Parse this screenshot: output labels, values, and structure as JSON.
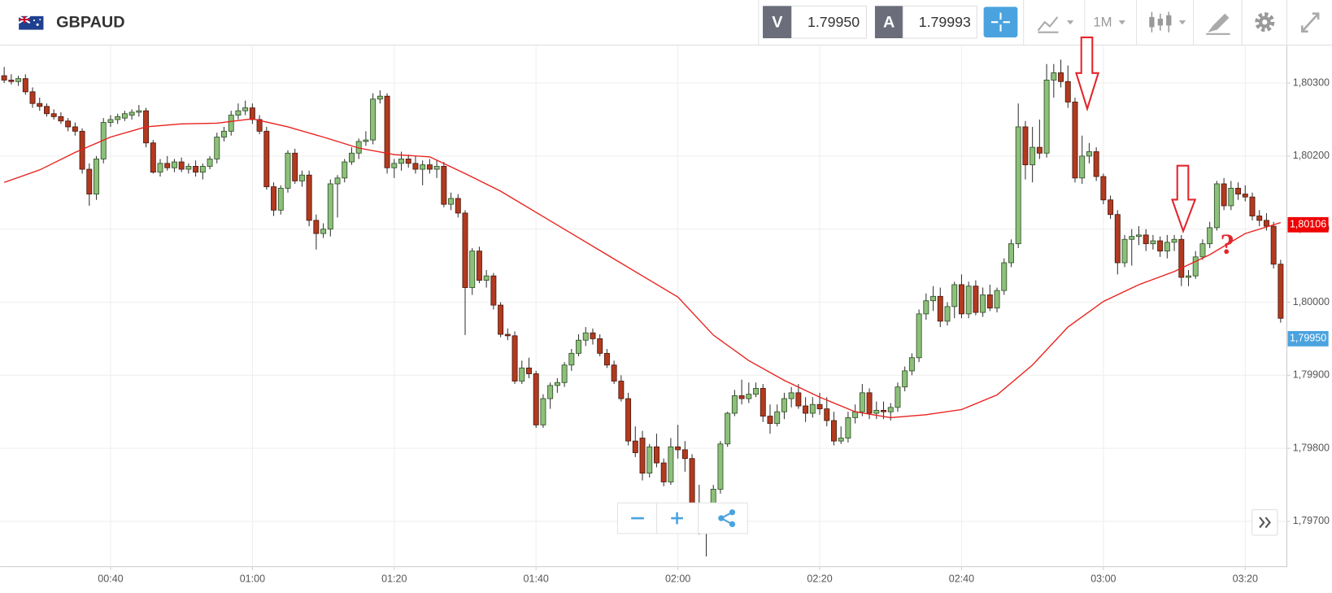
{
  "toolbar": {
    "symbol": "GBPAUD",
    "sell_label": "V",
    "sell_price": "1.79950",
    "buy_label": "A",
    "buy_price": "1.79993",
    "timeframe": "1M"
  },
  "chart_data": {
    "type": "candlestick",
    "x": [
      25,
      26,
      27,
      28,
      29,
      30,
      31,
      32,
      33,
      34,
      35,
      36,
      37,
      38,
      39,
      40,
      41,
      42,
      43,
      44,
      45,
      46,
      47,
      48,
      49,
      50,
      51,
      52,
      53,
      54,
      55,
      56,
      57,
      58,
      59,
      60,
      61,
      62,
      63,
      64,
      65,
      66,
      67,
      68,
      69,
      70,
      71,
      72,
      73,
      74,
      75,
      76,
      77,
      78,
      79,
      80,
      81,
      82,
      83,
      84,
      85,
      86,
      87,
      88,
      89,
      90,
      91,
      92,
      93,
      94,
      95,
      96,
      97,
      98,
      99,
      100,
      101,
      102,
      103,
      104,
      105,
      106,
      107,
      108,
      109,
      110,
      111,
      112,
      113,
      114,
      115,
      116,
      117,
      118,
      119,
      120,
      121,
      122,
      123,
      124,
      125,
      126,
      127,
      128,
      129,
      130,
      131,
      132,
      133,
      134,
      135,
      136,
      137,
      138,
      139,
      140,
      141,
      142,
      143,
      144,
      145,
      146,
      147,
      148,
      149,
      150,
      151,
      152,
      153,
      154,
      155,
      156,
      157,
      158,
      159,
      160,
      161,
      162,
      163,
      164,
      165,
      166,
      167,
      168,
      169,
      170,
      171,
      172,
      173,
      174,
      175,
      176,
      177,
      178,
      179,
      180,
      181,
      182,
      183,
      184,
      185,
      186,
      187,
      188,
      189,
      190,
      191,
      192,
      193,
      194,
      195,
      196,
      197,
      198,
      199,
      200,
      201,
      202,
      203,
      204,
      205
    ],
    "open": [
      1.8031,
      1.80304,
      1.80302,
      1.80306,
      1.80288,
      1.80272,
      1.80268,
      1.80258,
      1.80254,
      1.80248,
      1.8024,
      1.80234,
      1.80182,
      1.80148,
      1.80196,
      1.80246,
      1.8025,
      1.80252,
      1.80256,
      1.8026,
      1.80262,
      1.80218,
      1.80178,
      1.8019,
      1.80184,
      1.80192,
      1.80182,
      1.80186,
      1.80178,
      1.80186,
      1.80196,
      1.80226,
      1.80234,
      1.80256,
      1.80262,
      1.80266,
      1.8025,
      1.80234,
      1.80158,
      1.80126,
      1.80156,
      1.80204,
      1.80166,
      1.80174,
      1.80112,
      1.80094,
      1.801,
      1.80162,
      1.8017,
      1.80192,
      1.80204,
      1.8022,
      1.80222,
      1.80278,
      1.80282,
      1.80184,
      1.8019,
      1.80196,
      1.8019,
      1.80182,
      1.80188,
      1.80182,
      1.80186,
      1.80134,
      1.80142,
      1.80122,
      1.8002,
      1.8007,
      1.8003,
      1.80036,
      1.79996,
      1.79956,
      1.79954,
      1.79892,
      1.7991,
      1.79902,
      1.79832,
      1.79868,
      1.79886,
      1.7989,
      1.79914,
      1.7993,
      1.79948,
      1.79958,
      1.7995,
      1.7993,
      1.79914,
      1.79892,
      1.79868,
      1.7981,
      1.79814,
      1.79766,
      1.79802,
      1.7978,
      1.79754,
      1.79802,
      1.79798,
      1.79786,
      1.79722,
      1.797,
      1.79708,
      1.79744,
      1.79806,
      1.79848,
      1.79872,
      1.79868,
      1.79874,
      1.79882,
      1.79844,
      1.79834,
      1.7985,
      1.79868,
      1.79876,
      1.79858,
      1.79848,
      1.7986,
      1.79854,
      1.79838,
      1.7981,
      1.79814,
      1.79842,
      1.7985,
      1.79876,
      1.79848,
      1.79852,
      1.7985,
      1.79856,
      1.79884,
      1.79906,
      1.79924,
      1.79984,
      1.80002,
      1.80008,
      1.79974,
      1.79994,
      1.80024,
      1.79984,
      1.80022,
      1.79986,
      1.8001,
      1.79992,
      1.80016,
      1.80054,
      1.8008,
      1.8024,
      1.80188,
      1.80212,
      1.80204,
      1.80304,
      1.80314,
      1.80302,
      1.80274,
      1.8017,
      1.802,
      1.80206,
      1.80172,
      1.8014,
      1.8012,
      1.80054,
      1.80086,
      1.8009,
      1.80092,
      1.8008,
      1.80084,
      1.8007,
      1.80082,
      1.80086,
      1.80034,
      1.80036,
      1.80062,
      1.8008,
      1.80102,
      1.80162,
      1.80132,
      1.80156,
      1.80148,
      1.80144,
      1.80118,
      1.80112,
      1.80104,
      1.80052
    ],
    "high": [
      1.80322,
      1.80312,
      1.8031,
      1.80312,
      1.80294,
      1.8028,
      1.80272,
      1.80264,
      1.8026,
      1.80252,
      1.80246,
      1.80238,
      1.8019,
      1.802,
      1.80252,
      1.80256,
      1.80258,
      1.80262,
      1.80264,
      1.8027,
      1.80266,
      1.80222,
      1.80196,
      1.802,
      1.80196,
      1.80198,
      1.8019,
      1.80194,
      1.8019,
      1.802,
      1.80232,
      1.8024,
      1.80262,
      1.80272,
      1.80276,
      1.80272,
      1.80256,
      1.8024,
      1.80164,
      1.8016,
      1.80208,
      1.8021,
      1.8018,
      1.8018,
      1.8012,
      1.80108,
      1.80168,
      1.80174,
      1.80196,
      1.80212,
      1.80224,
      1.80234,
      1.80286,
      1.8029,
      1.80286,
      1.80196,
      1.80206,
      1.80202,
      1.802,
      1.80194,
      1.80196,
      1.80194,
      1.80192,
      1.8015,
      1.80148,
      1.80126,
      1.80074,
      1.80076,
      1.80044,
      1.8004,
      1.8,
      1.79964,
      1.7996,
      1.7992,
      1.79924,
      1.79906,
      1.79874,
      1.7989,
      1.79896,
      1.79918,
      1.79936,
      1.79956,
      1.79966,
      1.79964,
      1.79956,
      1.79936,
      1.7992,
      1.799,
      1.79876,
      1.7983,
      1.79824,
      1.79806,
      1.7982,
      1.79786,
      1.79814,
      1.79832,
      1.7981,
      1.79792,
      1.7975,
      1.7972,
      1.7975,
      1.7981,
      1.7985,
      1.7988,
      1.79894,
      1.7989,
      1.7989,
      1.79888,
      1.7986,
      1.7986,
      1.79876,
      1.79884,
      1.79888,
      1.7987,
      1.7987,
      1.79876,
      1.7987,
      1.7985,
      1.7983,
      1.7985,
      1.7986,
      1.79888,
      1.79882,
      1.79864,
      1.79864,
      1.79862,
      1.7989,
      1.79912,
      1.7993,
      1.7999,
      1.80012,
      1.80022,
      1.8002,
      1.8,
      1.80028,
      1.80038,
      1.80028,
      1.8003,
      1.8002,
      1.80024,
      1.8002,
      1.8006,
      1.80086,
      1.80272,
      1.80248,
      1.8024,
      1.8025,
      1.80326,
      1.80326,
      1.80332,
      1.80324,
      1.8028,
      1.80228,
      1.80218,
      1.80212,
      1.80176,
      1.80146,
      1.80126,
      1.80092,
      1.801,
      1.80104,
      1.801,
      1.80092,
      1.8009,
      1.80092,
      1.80092,
      1.80092,
      1.80044,
      1.8007,
      1.80086,
      1.8011,
      1.80166,
      1.8017,
      1.80166,
      1.80164,
      1.8016,
      1.8015,
      1.80126,
      1.80122,
      1.8011,
      1.80058
    ],
    "low": [
      1.803,
      1.80298,
      1.80296,
      1.80284,
      1.80266,
      1.80262,
      1.80254,
      1.8025,
      1.80244,
      1.80234,
      1.80228,
      1.80176,
      1.80132,
      1.8014,
      1.8019,
      1.8024,
      1.80244,
      1.80248,
      1.8025,
      1.80254,
      1.80212,
      1.80176,
      1.80172,
      1.8018,
      1.80178,
      1.80178,
      1.80176,
      1.80172,
      1.80168,
      1.80182,
      1.8019,
      1.8022,
      1.80228,
      1.8025,
      1.80256,
      1.80244,
      1.8023,
      1.80154,
      1.80118,
      1.8012,
      1.8015,
      1.80162,
      1.80158,
      1.80104,
      1.80072,
      1.80088,
      1.8009,
      1.80116,
      1.80164,
      1.80188,
      1.80196,
      1.80214,
      1.80216,
      1.80272,
      1.80176,
      1.8017,
      1.8018,
      1.80184,
      1.80176,
      1.8016,
      1.80176,
      1.8017,
      1.8013,
      1.80126,
      1.80116,
      1.79955,
      1.8001,
      1.80026,
      1.8002,
      1.7999,
      1.79952,
      1.79948,
      1.79888,
      1.79888,
      1.79896,
      1.79828,
      1.79828,
      1.79854,
      1.79876,
      1.79884,
      1.79906,
      1.79926,
      1.7994,
      1.79942,
      1.79926,
      1.7991,
      1.79888,
      1.79864,
      1.79804,
      1.79788,
      1.79756,
      1.7976,
      1.79774,
      1.79748,
      1.7975,
      1.79786,
      1.79768,
      1.79716,
      1.79682,
      1.79652,
      1.79704,
      1.79738,
      1.79802,
      1.79844,
      1.7986,
      1.79862,
      1.7987,
      1.79836,
      1.7982,
      1.7983,
      1.7984,
      1.79856,
      1.79854,
      1.79836,
      1.79842,
      1.79846,
      1.7983,
      1.79804,
      1.79806,
      1.79808,
      1.79834,
      1.79844,
      1.7984,
      1.7984,
      1.7984,
      1.79838,
      1.7985,
      1.79878,
      1.799,
      1.79918,
      1.79976,
      1.79988,
      1.79966,
      1.79968,
      1.79978,
      1.79978,
      1.79978,
      1.79982,
      1.7998,
      1.79988,
      1.79986,
      1.8001,
      1.80048,
      1.80074,
      1.80168,
      1.80164,
      1.80196,
      1.80198,
      1.8028,
      1.80294,
      1.80266,
      1.80164,
      1.80162,
      1.8019,
      1.80166,
      1.80134,
      1.80114,
      1.80038,
      1.80048,
      1.8005,
      1.80078,
      1.8007,
      1.80072,
      1.80062,
      1.8006,
      1.8007,
      1.80022,
      1.80022,
      1.80032,
      1.80058,
      1.80074,
      1.80098,
      1.80126,
      1.80126,
      1.8014,
      1.80138,
      1.80112,
      1.80104,
      1.80098,
      1.80046,
      1.79972
    ],
    "close": [
      1.80304,
      1.80302,
      1.80306,
      1.80288,
      1.80272,
      1.80268,
      1.80258,
      1.80254,
      1.80248,
      1.8024,
      1.80234,
      1.80182,
      1.80148,
      1.80196,
      1.80246,
      1.8025,
      1.80254,
      1.80258,
      1.8026,
      1.80262,
      1.80218,
      1.80178,
      1.8019,
      1.80184,
      1.80192,
      1.80182,
      1.80186,
      1.80178,
      1.80186,
      1.80196,
      1.80226,
      1.80234,
      1.80256,
      1.80262,
      1.80266,
      1.8025,
      1.80234,
      1.80158,
      1.80126,
      1.80156,
      1.80204,
      1.80166,
      1.80174,
      1.80112,
      1.80094,
      1.801,
      1.80162,
      1.8017,
      1.80192,
      1.80204,
      1.8022,
      1.80222,
      1.80278,
      1.80282,
      1.80184,
      1.8019,
      1.80196,
      1.8019,
      1.80182,
      1.80188,
      1.80182,
      1.80186,
      1.80134,
      1.80142,
      1.80122,
      1.8002,
      1.8007,
      1.8003,
      1.80036,
      1.79996,
      1.79956,
      1.79954,
      1.79892,
      1.7991,
      1.79902,
      1.79832,
      1.79868,
      1.79886,
      1.7989,
      1.79914,
      1.7993,
      1.79948,
      1.79958,
      1.7995,
      1.7993,
      1.79914,
      1.79892,
      1.79868,
      1.7981,
      1.79794,
      1.79766,
      1.79802,
      1.7978,
      1.79754,
      1.79802,
      1.79798,
      1.79786,
      1.79722,
      1.79688,
      1.79708,
      1.79744,
      1.79806,
      1.79848,
      1.79872,
      1.79868,
      1.79874,
      1.79882,
      1.79844,
      1.79834,
      1.7985,
      1.79868,
      1.79876,
      1.79858,
      1.79848,
      1.7986,
      1.79854,
      1.79838,
      1.7981,
      1.79814,
      1.79842,
      1.7985,
      1.79876,
      1.79848,
      1.79852,
      1.7985,
      1.79856,
      1.79884,
      1.79906,
      1.79924,
      1.79984,
      1.80002,
      1.80008,
      1.79974,
      1.79994,
      1.80024,
      1.79984,
      1.80022,
      1.79986,
      1.8001,
      1.79992,
      1.80016,
      1.80054,
      1.8008,
      1.8024,
      1.80188,
      1.80212,
      1.80204,
      1.80304,
      1.80314,
      1.80302,
      1.80274,
      1.8017,
      1.802,
      1.80206,
      1.80172,
      1.8014,
      1.8012,
      1.80054,
      1.80086,
      1.8009,
      1.80092,
      1.8008,
      1.80084,
      1.8007,
      1.80082,
      1.80086,
      1.80034,
      1.80036,
      1.80062,
      1.8008,
      1.80102,
      1.80162,
      1.80132,
      1.80156,
      1.80148,
      1.80144,
      1.80118,
      1.80112,
      1.80104,
      1.80052,
      1.79978
    ],
    "up_color": "#8dc07a",
    "down_color": "#b23a1f",
    "ma": {
      "type": "line",
      "color": "#e8201c",
      "x": [
        25,
        30,
        35,
        40,
        45,
        50,
        55,
        60,
        65,
        70,
        75,
        80,
        85,
        90,
        95,
        100,
        105,
        110,
        115,
        120,
        125,
        130,
        135,
        140,
        145,
        150,
        155,
        160,
        165,
        170,
        175,
        180,
        185,
        190,
        195,
        200,
        205
      ],
      "values": [
        1.80164,
        1.80181,
        1.80205,
        1.80226,
        1.8024,
        1.80244,
        1.80245,
        1.80251,
        1.8024,
        1.80226,
        1.80211,
        1.80202,
        1.80199,
        1.80176,
        1.80152,
        1.80123,
        1.80094,
        1.80065,
        1.80036,
        1.80007,
        1.79955,
        1.7992,
        1.79893,
        1.7987,
        1.7985,
        1.79842,
        1.79846,
        1.79853,
        1.79873,
        1.79914,
        1.79966,
        1.80001,
        1.80024,
        1.80042,
        1.80065,
        1.80094,
        1.80109
      ]
    },
    "xlim": [
      24.43,
      205.87
    ],
    "xticks": [
      {
        "value": 40,
        "label": "00:40"
      },
      {
        "value": 60,
        "label": "01:00"
      },
      {
        "value": 80,
        "label": "01:20"
      },
      {
        "value": 100,
        "label": "01:40"
      },
      {
        "value": 120,
        "label": "02:00"
      },
      {
        "value": 140,
        "label": "02:20"
      },
      {
        "value": 160,
        "label": "02:40"
      },
      {
        "value": 180,
        "label": "03:00"
      },
      {
        "value": 200,
        "label": "03:20"
      }
    ],
    "ylim": [
      1.79638,
      1.80352
    ],
    "yticks": [
      {
        "value": 1.797,
        "label": "1,79700"
      },
      {
        "value": 1.798,
        "label": "1,79800"
      },
      {
        "value": 1.799,
        "label": "1,79900"
      },
      {
        "value": 1.8,
        "label": "1,80000"
      },
      {
        "value": 1.801,
        "label": "1,80100"
      },
      {
        "value": 1.802,
        "label": "1,80200"
      },
      {
        "value": 1.803,
        "label": "1,80300"
      }
    ],
    "grid": true,
    "price_markers": [
      {
        "value": 1.80106,
        "label": "1,80106",
        "color": "#f00000"
      },
      {
        "value": 1.7995,
        "label": "1,79950",
        "color": "#4aa3df"
      }
    ],
    "annotation": "?"
  }
}
